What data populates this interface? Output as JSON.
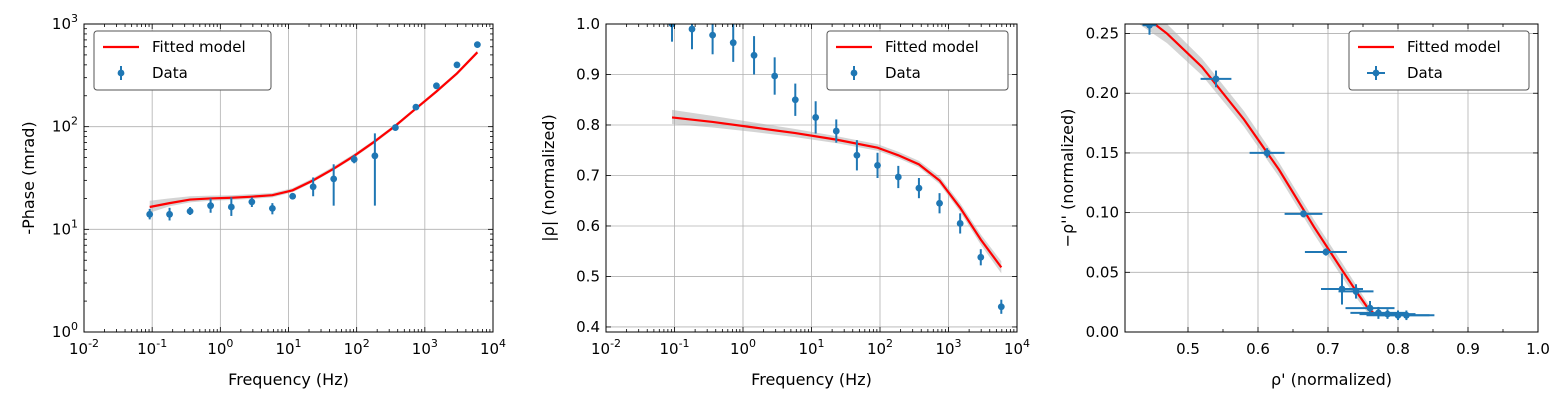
{
  "colors": {
    "data": "#1f77b4",
    "model": "#ff0000",
    "band": "#cccccc",
    "grid": "#b0b0b0"
  },
  "chart_data": [
    {
      "type": "scatter",
      "xlabel": "Frequency (Hz)",
      "ylabel": "-Phase (mrad)",
      "xscale": "log",
      "yscale": "log",
      "xlim": [
        0.01,
        10000
      ],
      "ylim": [
        1,
        1000
      ],
      "xticks": [
        0.01,
        0.1,
        1,
        10,
        100,
        1000,
        10000
      ],
      "xtick_labels": [
        [
          "10",
          "-2"
        ],
        [
          "10",
          "-1"
        ],
        [
          "10",
          "0"
        ],
        [
          "10",
          "1"
        ],
        [
          "10",
          "2"
        ],
        [
          "10",
          "3"
        ],
        [
          "10",
          "4"
        ]
      ],
      "yticks": [
        1,
        10,
        100,
        1000
      ],
      "ytick_labels": [
        [
          "10",
          "0"
        ],
        [
          "10",
          "1"
        ],
        [
          "10",
          "2"
        ],
        [
          "10",
          "3"
        ]
      ],
      "grid": true,
      "legend": "upper-left",
      "legend_entries": [
        "Fitted model",
        "Data"
      ],
      "data": [
        {
          "x": 0.092,
          "y": 14.0,
          "ylo": 12.5,
          "yhi": 15.8
        },
        {
          "x": 0.18,
          "y": 14.0,
          "ylo": 12.2,
          "yhi": 16.2
        },
        {
          "x": 0.36,
          "y": 15.0,
          "ylo": 13.8,
          "yhi": 16.5
        },
        {
          "x": 0.72,
          "y": 17.0,
          "ylo": 14.5,
          "yhi": 20.0
        },
        {
          "x": 1.45,
          "y": 16.5,
          "ylo": 13.5,
          "yhi": 20.5
        },
        {
          "x": 2.9,
          "y": 18.5,
          "ylo": 16.5,
          "yhi": 20.5
        },
        {
          "x": 5.8,
          "y": 16.0,
          "ylo": 14.0,
          "yhi": 18.0
        },
        {
          "x": 11.5,
          "y": 21.0,
          "ylo": 20.0,
          "yhi": 22.0
        },
        {
          "x": 23,
          "y": 26.0,
          "ylo": 21.0,
          "yhi": 32.0
        },
        {
          "x": 46,
          "y": 31.0,
          "ylo": 17.0,
          "yhi": 43.0
        },
        {
          "x": 92,
          "y": 48.0,
          "ylo": 44.0,
          "yhi": 53.0
        },
        {
          "x": 185,
          "y": 52.0,
          "ylo": 17.0,
          "yhi": 86.0
        },
        {
          "x": 370,
          "y": 98.0,
          "ylo": 95.0,
          "yhi": 101.0
        },
        {
          "x": 740,
          "y": 155.0,
          "ylo": 150.0,
          "yhi": 160.0
        },
        {
          "x": 1480,
          "y": 250.0,
          "ylo": 243.0,
          "yhi": 257.0
        },
        {
          "x": 2960,
          "y": 400.0,
          "ylo": 385.0,
          "yhi": 415.0
        },
        {
          "x": 5900,
          "y": 630.0,
          "ylo": 610.0,
          "yhi": 650.0
        }
      ],
      "model": [
        {
          "x": 0.092,
          "y": 16.5,
          "lo": 14.5,
          "hi": 19.0
        },
        {
          "x": 0.18,
          "y": 18.0,
          "lo": 16.8,
          "hi": 20.0
        },
        {
          "x": 0.36,
          "y": 19.5,
          "lo": 18.3,
          "hi": 21.0
        },
        {
          "x": 0.72,
          "y": 20.0,
          "lo": 19.0,
          "hi": 21.3
        },
        {
          "x": 1.45,
          "y": 20.3,
          "lo": 19.3,
          "hi": 21.5
        },
        {
          "x": 2.9,
          "y": 20.8,
          "lo": 19.8,
          "hi": 22.0
        },
        {
          "x": 5.8,
          "y": 21.5,
          "lo": 20.5,
          "hi": 22.6
        },
        {
          "x": 11.5,
          "y": 24.0,
          "lo": 23.0,
          "hi": 25.2
        },
        {
          "x": 23,
          "y": 30.0,
          "lo": 28.8,
          "hi": 31.5
        },
        {
          "x": 46,
          "y": 39.0,
          "lo": 37.5,
          "hi": 41.0
        },
        {
          "x": 92,
          "y": 52.0,
          "lo": 50.0,
          "hi": 54.5
        },
        {
          "x": 185,
          "y": 72.0,
          "lo": 69.0,
          "hi": 75.0
        },
        {
          "x": 370,
          "y": 102.0,
          "lo": 98.0,
          "hi": 106.0
        },
        {
          "x": 740,
          "y": 150.0,
          "lo": 145.0,
          "hi": 156.0
        },
        {
          "x": 1480,
          "y": 220.0,
          "lo": 212.0,
          "hi": 229.0
        },
        {
          "x": 2960,
          "y": 330.0,
          "lo": 318.0,
          "hi": 343.0
        },
        {
          "x": 5900,
          "y": 530.0,
          "lo": 510.0,
          "hi": 552.0
        }
      ]
    },
    {
      "type": "scatter",
      "xlabel": "Frequency (Hz)",
      "ylabel": "|ρ| (normalized)",
      "xscale": "log",
      "yscale": "linear",
      "xlim": [
        0.01,
        10000
      ],
      "ylim": [
        0.39,
        1.0
      ],
      "xticks": [
        0.01,
        0.1,
        1,
        10,
        100,
        1000,
        10000
      ],
      "xtick_labels": [
        [
          "10",
          "-2"
        ],
        [
          "10",
          "-1"
        ],
        [
          "10",
          "0"
        ],
        [
          "10",
          "1"
        ],
        [
          "10",
          "2"
        ],
        [
          "10",
          "3"
        ],
        [
          "10",
          "4"
        ]
      ],
      "yticks": [
        0.4,
        0.5,
        0.6,
        0.7,
        0.8,
        0.9,
        1.0
      ],
      "ytick_labels": [
        "0.4",
        "0.5",
        "0.6",
        "0.7",
        "0.8",
        "0.9",
        "1.0"
      ],
      "grid": true,
      "legend": "upper-right",
      "legend_entries": [
        "Fitted model",
        "Data"
      ],
      "data": [
        {
          "x": 0.092,
          "y": 1.0,
          "ylo": 0.965,
          "yhi": 1.04
        },
        {
          "x": 0.18,
          "y": 0.99,
          "ylo": 0.95,
          "yhi": 1.03
        },
        {
          "x": 0.36,
          "y": 0.978,
          "ylo": 0.94,
          "yhi": 1.015
        },
        {
          "x": 0.72,
          "y": 0.963,
          "ylo": 0.925,
          "yhi": 1.0
        },
        {
          "x": 1.45,
          "y": 0.938,
          "ylo": 0.9,
          "yhi": 0.976
        },
        {
          "x": 2.9,
          "y": 0.897,
          "ylo": 0.86,
          "yhi": 0.934
        },
        {
          "x": 5.8,
          "y": 0.85,
          "ylo": 0.818,
          "yhi": 0.882
        },
        {
          "x": 11.5,
          "y": 0.815,
          "ylo": 0.783,
          "yhi": 0.847
        },
        {
          "x": 23,
          "y": 0.788,
          "ylo": 0.765,
          "yhi": 0.811
        },
        {
          "x": 46,
          "y": 0.74,
          "ylo": 0.71,
          "yhi": 0.77
        },
        {
          "x": 92,
          "y": 0.72,
          "ylo": 0.695,
          "yhi": 0.745
        },
        {
          "x": 185,
          "y": 0.697,
          "ylo": 0.675,
          "yhi": 0.719
        },
        {
          "x": 370,
          "y": 0.675,
          "ylo": 0.655,
          "yhi": 0.695
        },
        {
          "x": 740,
          "y": 0.645,
          "ylo": 0.625,
          "yhi": 0.665
        },
        {
          "x": 1480,
          "y": 0.605,
          "ylo": 0.585,
          "yhi": 0.625
        },
        {
          "x": 2960,
          "y": 0.538,
          "ylo": 0.522,
          "yhi": 0.554
        },
        {
          "x": 5900,
          "y": 0.44,
          "ylo": 0.426,
          "yhi": 0.454
        }
      ],
      "model": [
        {
          "x": 0.092,
          "y": 0.815,
          "lo": 0.802,
          "hi": 0.83
        },
        {
          "x": 0.36,
          "y": 0.806,
          "lo": 0.795,
          "hi": 0.818
        },
        {
          "x": 1.45,
          "y": 0.795,
          "lo": 0.786,
          "hi": 0.805
        },
        {
          "x": 5.8,
          "y": 0.784,
          "lo": 0.776,
          "hi": 0.792
        },
        {
          "x": 23,
          "y": 0.771,
          "lo": 0.764,
          "hi": 0.778
        },
        {
          "x": 92,
          "y": 0.755,
          "lo": 0.749,
          "hi": 0.762
        },
        {
          "x": 185,
          "y": 0.74,
          "lo": 0.734,
          "hi": 0.747
        },
        {
          "x": 370,
          "y": 0.722,
          "lo": 0.716,
          "hi": 0.729
        },
        {
          "x": 740,
          "y": 0.69,
          "lo": 0.683,
          "hi": 0.698
        },
        {
          "x": 1480,
          "y": 0.636,
          "lo": 0.628,
          "hi": 0.645
        },
        {
          "x": 2960,
          "y": 0.573,
          "lo": 0.563,
          "hi": 0.583
        },
        {
          "x": 5900,
          "y": 0.518,
          "lo": 0.506,
          "hi": 0.53
        }
      ]
    },
    {
      "type": "scatter",
      "xlabel": "ρ' (normalized)",
      "ylabel": "−ρ'' (normalized)",
      "xscale": "linear",
      "yscale": "linear",
      "xlim": [
        0.41,
        1.0
      ],
      "ylim": [
        0.0,
        0.258
      ],
      "xticks": [
        0.5,
        0.6,
        0.7,
        0.8,
        0.9,
        1.0
      ],
      "xtick_labels": [
        "0.5",
        "0.6",
        "0.7",
        "0.8",
        "0.9",
        "1.0"
      ],
      "yticks": [
        0.0,
        0.05,
        0.1,
        0.15,
        0.2,
        0.25
      ],
      "ytick_labels": [
        "0.00",
        "0.05",
        "0.10",
        "0.15",
        "0.20",
        "0.25"
      ],
      "grid": true,
      "legend": "upper-right",
      "legend_entries": [
        "Fitted model",
        "Data"
      ],
      "data": [
        {
          "x": 0.445,
          "y": 0.257,
          "xerr": 0.01,
          "yerr": 0.008
        },
        {
          "x": 0.54,
          "y": 0.212,
          "xerr": 0.022,
          "yerr": 0.007
        },
        {
          "x": 0.613,
          "y": 0.15,
          "xerr": 0.025,
          "yerr": 0.004
        },
        {
          "x": 0.665,
          "y": 0.099,
          "xerr": 0.027,
          "yerr": 0.003
        },
        {
          "x": 0.697,
          "y": 0.067,
          "xerr": 0.03,
          "yerr": 0.003
        },
        {
          "x": 0.72,
          "y": 0.036,
          "xerr": 0.03,
          "yerr": 0.013
        },
        {
          "x": 0.74,
          "y": 0.034,
          "xerr": 0.025,
          "yerr": 0.006
        },
        {
          "x": 0.76,
          "y": 0.02,
          "xerr": 0.035,
          "yerr": 0.006
        },
        {
          "x": 0.772,
          "y": 0.016,
          "xerr": 0.04,
          "yerr": 0.005
        },
        {
          "x": 0.785,
          "y": 0.015,
          "xerr": 0.04,
          "yerr": 0.004
        },
        {
          "x": 0.8,
          "y": 0.014,
          "xerr": 0.045,
          "yerr": 0.004
        },
        {
          "x": 0.812,
          "y": 0.014,
          "xerr": 0.04,
          "yerr": 0.004
        }
      ],
      "model": [
        {
          "x": 0.43,
          "y": 0.268,
          "lo": 0.258,
          "hi": 0.278
        },
        {
          "x": 0.47,
          "y": 0.25,
          "lo": 0.242,
          "hi": 0.258
        },
        {
          "x": 0.52,
          "y": 0.222,
          "lo": 0.215,
          "hi": 0.229
        },
        {
          "x": 0.58,
          "y": 0.178,
          "lo": 0.172,
          "hi": 0.185
        },
        {
          "x": 0.63,
          "y": 0.136,
          "lo": 0.13,
          "hi": 0.142
        },
        {
          "x": 0.68,
          "y": 0.088,
          "lo": 0.082,
          "hi": 0.094
        },
        {
          "x": 0.72,
          "y": 0.052,
          "lo": 0.046,
          "hi": 0.058
        },
        {
          "x": 0.745,
          "y": 0.03,
          "lo": 0.025,
          "hi": 0.035
        },
        {
          "x": 0.757,
          "y": 0.02,
          "lo": 0.016,
          "hi": 0.024
        },
        {
          "x": 0.765,
          "y": 0.016,
          "lo": 0.013,
          "hi": 0.019
        }
      ]
    }
  ]
}
